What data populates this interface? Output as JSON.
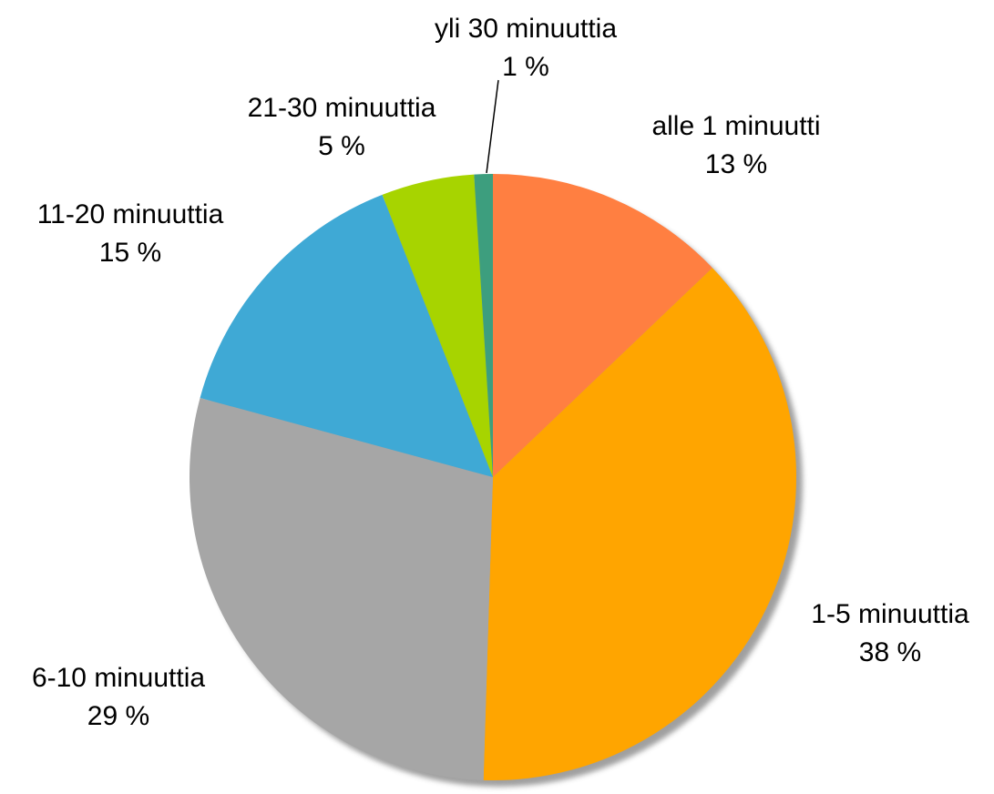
{
  "chart_data": {
    "type": "pie",
    "categories": [
      "alle 1 minuutti",
      "1-5 minuuttia",
      "6-10 minuuttia",
      "11-20 minuuttia",
      "21-30 minuuttia",
      "yli 30 minuuttia"
    ],
    "values": [
      13,
      38,
      29,
      15,
      5,
      1
    ],
    "value_labels": [
      "13 %",
      "38 %",
      "29 %",
      "15 %",
      "5 %",
      "1 %"
    ],
    "colors": [
      "#ff7f41",
      "#ffa500",
      "#a6a6a6",
      "#3fa9d5",
      "#a7d400",
      "#3d9e7e"
    ]
  }
}
